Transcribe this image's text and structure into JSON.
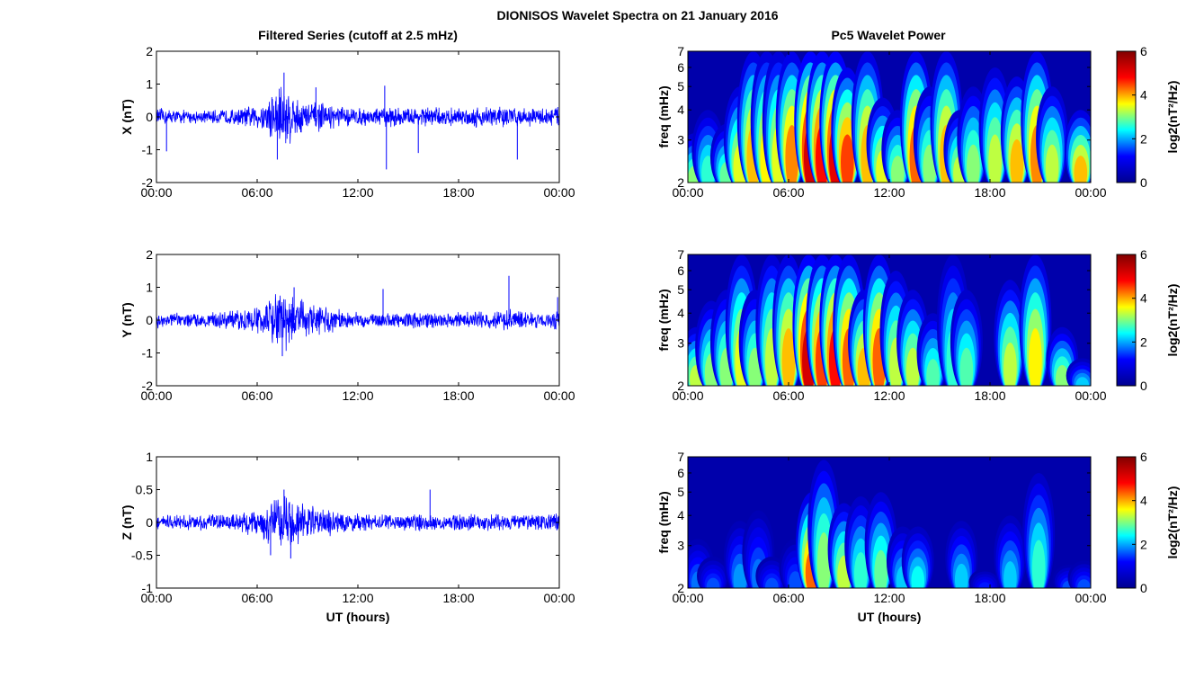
{
  "figure": {
    "title": "DIONISOS Wavelet Spectra on 21 January 2016",
    "left_title": "Filtered Series (cutoff at 2.5 mHz)",
    "right_title": "Pc5 Wavelet Power"
  },
  "colors": {
    "trace": "#0000ff",
    "colormap": [
      "#00008f",
      "#0000ff",
      "#00ffff",
      "#ffff00",
      "#ff0000",
      "#800000"
    ]
  },
  "chart_data": [
    {
      "type": "line",
      "component": "X",
      "ylabel": "X (nT)",
      "xlabel": "",
      "ylim": [
        -2,
        2
      ],
      "yticks": [
        "-2",
        "-1",
        "0",
        "1",
        "2"
      ],
      "xticks": [
        "00:00",
        "06:00",
        "12:00",
        "18:00",
        "00:00"
      ],
      "xlim_hours": [
        0,
        24
      ],
      "envelope": {
        "hours": [
          0,
          1,
          2,
          3,
          4,
          5,
          6,
          6.5,
          7,
          7.5,
          8,
          8.5,
          9,
          10,
          11,
          12,
          13,
          14,
          15,
          16,
          17,
          18,
          19,
          20,
          21,
          22,
          23,
          24
        ],
        "amplitude": [
          0.3,
          0.25,
          0.22,
          0.22,
          0.25,
          0.3,
          0.4,
          0.55,
          1.0,
          1.3,
          0.9,
          0.6,
          0.55,
          0.45,
          0.35,
          0.3,
          0.3,
          0.35,
          0.3,
          0.35,
          0.3,
          0.3,
          0.35,
          0.4,
          0.35,
          0.3,
          0.3,
          0.4
        ]
      },
      "spikes": [
        {
          "hour": 0.6,
          "value": -1.05
        },
        {
          "hour": 7.6,
          "value": 1.35
        },
        {
          "hour": 7.2,
          "value": -1.3
        },
        {
          "hour": 13.7,
          "value": -1.6
        },
        {
          "hour": 13.6,
          "value": 0.95
        },
        {
          "hour": 15.6,
          "value": -1.1
        },
        {
          "hour": 9.5,
          "value": 0.9
        },
        {
          "hour": 21.5,
          "value": -1.3
        }
      ]
    },
    {
      "type": "line",
      "component": "Y",
      "ylabel": "Y (nT)",
      "xlabel": "",
      "ylim": [
        -2,
        2
      ],
      "yticks": [
        "-2",
        "-1",
        "0",
        "1",
        "2"
      ],
      "xticks": [
        "00:00",
        "06:00",
        "12:00",
        "18:00",
        "00:00"
      ],
      "xlim_hours": [
        0,
        24
      ],
      "envelope": {
        "hours": [
          0,
          1,
          2,
          3,
          4,
          5,
          6,
          6.5,
          7,
          7.5,
          8,
          8.5,
          9,
          10,
          11,
          12,
          13,
          14,
          15,
          16,
          17,
          18,
          19,
          20,
          21,
          22,
          23,
          24
        ],
        "amplitude": [
          0.3,
          0.25,
          0.22,
          0.25,
          0.28,
          0.35,
          0.45,
          0.6,
          0.9,
          1.05,
          0.95,
          0.7,
          0.65,
          0.5,
          0.35,
          0.25,
          0.25,
          0.25,
          0.25,
          0.3,
          0.25,
          0.25,
          0.3,
          0.3,
          0.35,
          0.3,
          0.25,
          0.35
        ]
      },
      "spikes": [
        {
          "hour": 7.5,
          "value": -1.1
        },
        {
          "hour": 8.2,
          "value": 1.0
        },
        {
          "hour": 13.5,
          "value": 0.95
        },
        {
          "hour": 21.0,
          "value": 1.35
        },
        {
          "hour": 23.9,
          "value": 0.7
        }
      ]
    },
    {
      "type": "line",
      "component": "Z",
      "ylabel": "Z (nT)",
      "xlabel": "UT (hours)",
      "ylim": [
        -1,
        1
      ],
      "yticks": [
        "-1",
        "-0.5",
        "0",
        "0.5",
        "1"
      ],
      "xticks": [
        "00:00",
        "06:00",
        "12:00",
        "18:00",
        "00:00"
      ],
      "xlim_hours": [
        0,
        24
      ],
      "envelope": {
        "hours": [
          0,
          1,
          2,
          3,
          4,
          5,
          6,
          6.5,
          7,
          7.5,
          8,
          8.5,
          9,
          10,
          11,
          12,
          13,
          14,
          15,
          16,
          17,
          18,
          19,
          20,
          21,
          22,
          23,
          24
        ],
        "amplitude": [
          0.12,
          0.12,
          0.12,
          0.13,
          0.14,
          0.18,
          0.22,
          0.3,
          0.45,
          0.5,
          0.45,
          0.35,
          0.3,
          0.25,
          0.2,
          0.15,
          0.14,
          0.14,
          0.14,
          0.14,
          0.13,
          0.14,
          0.15,
          0.15,
          0.14,
          0.13,
          0.13,
          0.18
        ]
      },
      "spikes": [
        {
          "hour": 7.6,
          "value": 0.5
        },
        {
          "hour": 8.0,
          "value": -0.55
        },
        {
          "hour": 16.3,
          "value": 0.5
        },
        {
          "hour": 6.8,
          "value": -0.5
        }
      ]
    },
    {
      "type": "heatmap",
      "component": "X",
      "ylabel": "freq (mHz)",
      "xlabel": "",
      "ylim_mHz": [
        2,
        7
      ],
      "yscale": "log",
      "yticks": [
        "2",
        "3",
        "4",
        "5",
        "6",
        "7"
      ],
      "xticks": [
        "00:00",
        "06:00",
        "12:00",
        "18:00",
        "00:00"
      ],
      "colorbar_label": "log2(nT²/Hz)",
      "clim": [
        0,
        6
      ],
      "colorbar_ticks": [
        "0",
        "2",
        "4",
        "6"
      ],
      "bursts": [
        {
          "hour": 0.4,
          "power": 3.5,
          "freq_top": 3.2
        },
        {
          "hour": 1.2,
          "power": 3.0,
          "freq_top": 4.0
        },
        {
          "hour": 2.3,
          "power": 3.3,
          "freq_top": 3.5
        },
        {
          "hour": 3.1,
          "power": 4.0,
          "freq_top": 5.0
        },
        {
          "hour": 3.9,
          "power": 4.5,
          "freq_top": 7.0
        },
        {
          "hour": 4.7,
          "power": 4.2,
          "freq_top": 7.0
        },
        {
          "hour": 5.4,
          "power": 4.0,
          "freq_top": 7.0
        },
        {
          "hour": 6.2,
          "power": 4.8,
          "freq_top": 7.0
        },
        {
          "hour": 7.3,
          "power": 6.0,
          "freq_top": 7.0
        },
        {
          "hour": 8.0,
          "power": 5.5,
          "freq_top": 7.0
        },
        {
          "hour": 8.8,
          "power": 5.8,
          "freq_top": 7.0
        },
        {
          "hour": 9.5,
          "power": 5.2,
          "freq_top": 6.0
        },
        {
          "hour": 10.7,
          "power": 4.5,
          "freq_top": 7.0
        },
        {
          "hour": 11.6,
          "power": 4.0,
          "freq_top": 4.5
        },
        {
          "hour": 12.5,
          "power": 3.5,
          "freq_top": 4.0
        },
        {
          "hour": 13.6,
          "power": 5.0,
          "freq_top": 7.0
        },
        {
          "hour": 14.4,
          "power": 3.5,
          "freq_top": 5.0
        },
        {
          "hour": 15.4,
          "power": 4.5,
          "freq_top": 7.0
        },
        {
          "hour": 16.2,
          "power": 3.8,
          "freq_top": 4.0
        },
        {
          "hour": 17.0,
          "power": 3.5,
          "freq_top": 5.0
        },
        {
          "hour": 18.3,
          "power": 3.8,
          "freq_top": 6.0
        },
        {
          "hour": 19.6,
          "power": 4.5,
          "freq_top": 5.5
        },
        {
          "hour": 20.8,
          "power": 4.8,
          "freq_top": 7.0
        },
        {
          "hour": 21.7,
          "power": 3.8,
          "freq_top": 5.0
        },
        {
          "hour": 23.4,
          "power": 4.5,
          "freq_top": 4.0
        }
      ]
    },
    {
      "type": "heatmap",
      "component": "Y",
      "ylabel": "freq (mHz)",
      "xlabel": "",
      "ylim_mHz": [
        2,
        7
      ],
      "yscale": "log",
      "yticks": [
        "2",
        "3",
        "4",
        "5",
        "6",
        "7"
      ],
      "xticks": [
        "00:00",
        "06:00",
        "12:00",
        "18:00",
        "00:00"
      ],
      "colorbar_label": "log2(nT²/Hz)",
      "clim": [
        0,
        6
      ],
      "colorbar_ticks": [
        "0",
        "2",
        "4",
        "6"
      ],
      "bursts": [
        {
          "hour": 0.5,
          "power": 3.8,
          "freq_top": 3.5
        },
        {
          "hour": 1.4,
          "power": 3.5,
          "freq_top": 4.5
        },
        {
          "hour": 2.3,
          "power": 3.5,
          "freq_top": 5.0
        },
        {
          "hour": 3.2,
          "power": 4.0,
          "freq_top": 7.0
        },
        {
          "hour": 4.0,
          "power": 3.5,
          "freq_top": 5.0
        },
        {
          "hour": 5.0,
          "power": 3.8,
          "freq_top": 7.0
        },
        {
          "hour": 6.0,
          "power": 4.5,
          "freq_top": 7.0
        },
        {
          "hour": 7.2,
          "power": 6.0,
          "freq_top": 7.0
        },
        {
          "hour": 8.0,
          "power": 5.2,
          "freq_top": 7.0
        },
        {
          "hour": 8.8,
          "power": 5.5,
          "freq_top": 7.0
        },
        {
          "hour": 9.6,
          "power": 5.0,
          "freq_top": 7.0
        },
        {
          "hour": 10.5,
          "power": 4.5,
          "freq_top": 5.0
        },
        {
          "hour": 11.4,
          "power": 5.0,
          "freq_top": 7.0
        },
        {
          "hour": 12.4,
          "power": 3.8,
          "freq_top": 6.0
        },
        {
          "hour": 13.4,
          "power": 3.8,
          "freq_top": 5.0
        },
        {
          "hour": 14.6,
          "power": 3.2,
          "freq_top": 4.0
        },
        {
          "hour": 15.8,
          "power": 3.0,
          "freq_top": 7.0
        },
        {
          "hour": 16.6,
          "power": 3.2,
          "freq_top": 5.0
        },
        {
          "hour": 19.2,
          "power": 3.8,
          "freq_top": 5.5
        },
        {
          "hour": 20.7,
          "power": 4.2,
          "freq_top": 7.0
        },
        {
          "hour": 22.3,
          "power": 3.5,
          "freq_top": 3.5
        },
        {
          "hour": 23.5,
          "power": 2.5,
          "freq_top": 2.6
        }
      ]
    },
    {
      "type": "heatmap",
      "component": "Z",
      "ylabel": "freq (mHz)",
      "xlabel": "UT (hours)",
      "ylim_mHz": [
        2,
        7
      ],
      "yscale": "log",
      "yticks": [
        "2",
        "3",
        "4",
        "5",
        "6",
        "7"
      ],
      "xticks": [
        "00:00",
        "06:00",
        "12:00",
        "18:00",
        "00:00"
      ],
      "colorbar_label": "log2(nT²/Hz)",
      "clim": [
        0,
        6
      ],
      "colorbar_ticks": [
        "0",
        "2",
        "4",
        "6"
      ],
      "bursts": [
        {
          "hour": 0.6,
          "power": 2.0,
          "freq_top": 3.2
        },
        {
          "hour": 1.5,
          "power": 1.8,
          "freq_top": 2.7
        },
        {
          "hour": 3.1,
          "power": 2.2,
          "freq_top": 3.8
        },
        {
          "hour": 4.2,
          "power": 2.0,
          "freq_top": 4.2
        },
        {
          "hour": 5.0,
          "power": 1.8,
          "freq_top": 2.7
        },
        {
          "hour": 6.4,
          "power": 1.8,
          "freq_top": 3.2
        },
        {
          "hour": 7.4,
          "power": 5.0,
          "freq_top": 5.0
        },
        {
          "hour": 8.1,
          "power": 3.5,
          "freq_top": 6.8
        },
        {
          "hour": 9.3,
          "power": 3.8,
          "freq_top": 4.5
        },
        {
          "hour": 10.3,
          "power": 3.0,
          "freq_top": 4.8
        },
        {
          "hour": 11.5,
          "power": 3.3,
          "freq_top": 5.0
        },
        {
          "hour": 12.8,
          "power": 2.5,
          "freq_top": 3.6
        },
        {
          "hour": 13.7,
          "power": 2.8,
          "freq_top": 3.6
        },
        {
          "hour": 16.3,
          "power": 2.5,
          "freq_top": 3.8
        },
        {
          "hour": 17.7,
          "power": 1.5,
          "freq_top": 2.4
        },
        {
          "hour": 19.2,
          "power": 2.5,
          "freq_top": 4.0
        },
        {
          "hour": 20.9,
          "power": 3.0,
          "freq_top": 6.0
        },
        {
          "hour": 22.7,
          "power": 1.8,
          "freq_top": 2.5
        },
        {
          "hour": 23.6,
          "power": 1.8,
          "freq_top": 2.6
        }
      ]
    }
  ]
}
